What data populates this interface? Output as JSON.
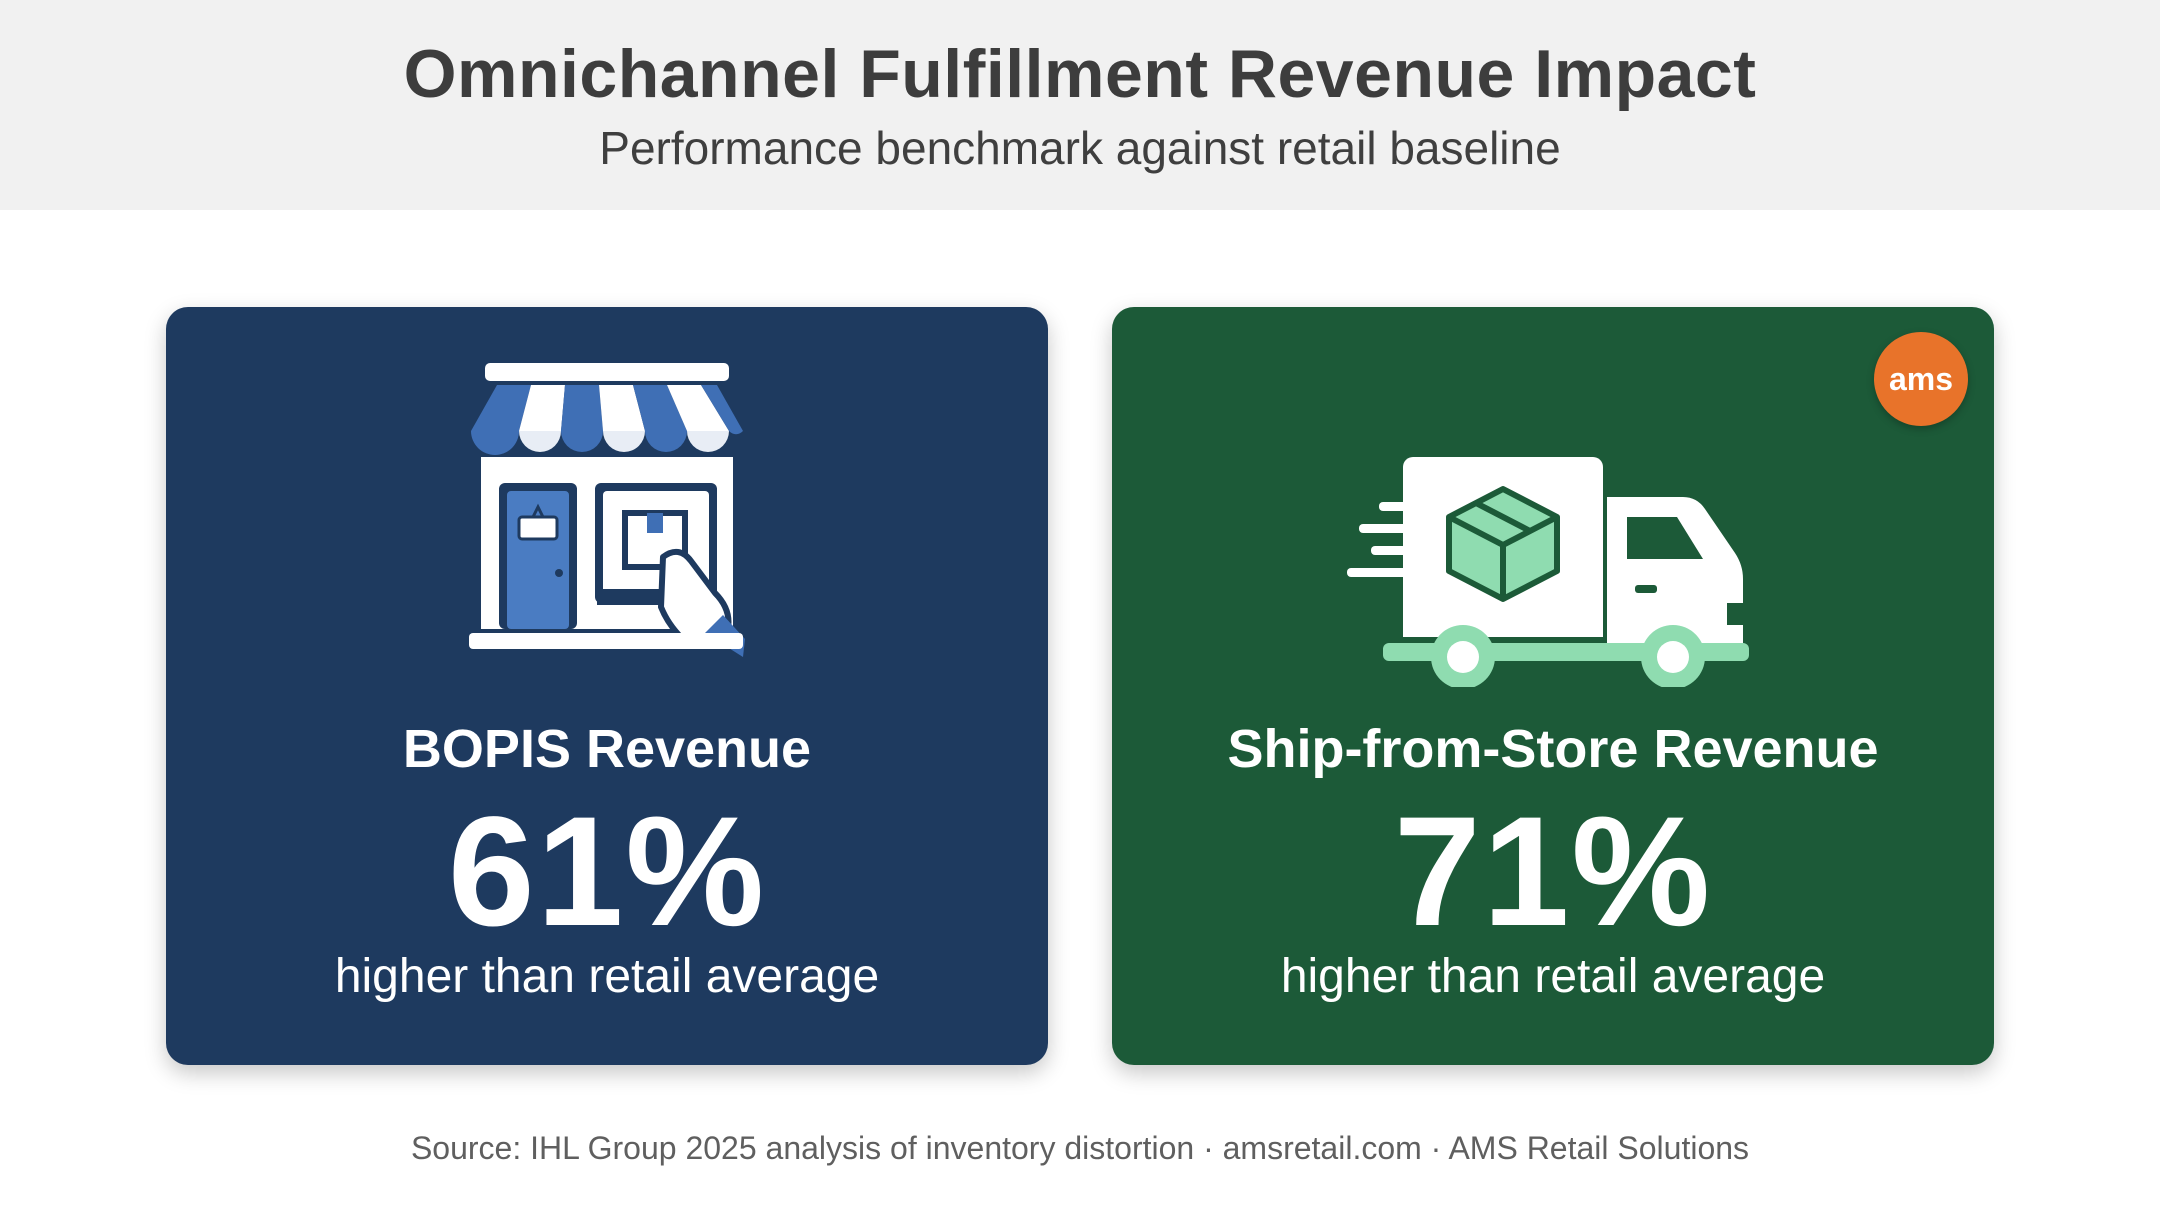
{
  "header": {
    "title": "Omnichannel Fulfillment Revenue Impact",
    "subtitle": "Performance benchmark against retail baseline"
  },
  "cards": [
    {
      "icon": "storefront-pickup-icon",
      "label": "BOPIS Revenue",
      "value": "61%",
      "caption": "higher than retail average",
      "background": "#1e3a5f"
    },
    {
      "icon": "delivery-truck-icon",
      "label": "Ship-from-Store Revenue",
      "value": "71%",
      "caption": "higher than retail average",
      "background": "#1c5a38",
      "badge": "ams",
      "badge_color": "#e8732a"
    }
  ],
  "footer": {
    "source": "Source: IHL Group 2025 analysis of inventory distortion · amsretail.com · AMS Retail Solutions"
  }
}
